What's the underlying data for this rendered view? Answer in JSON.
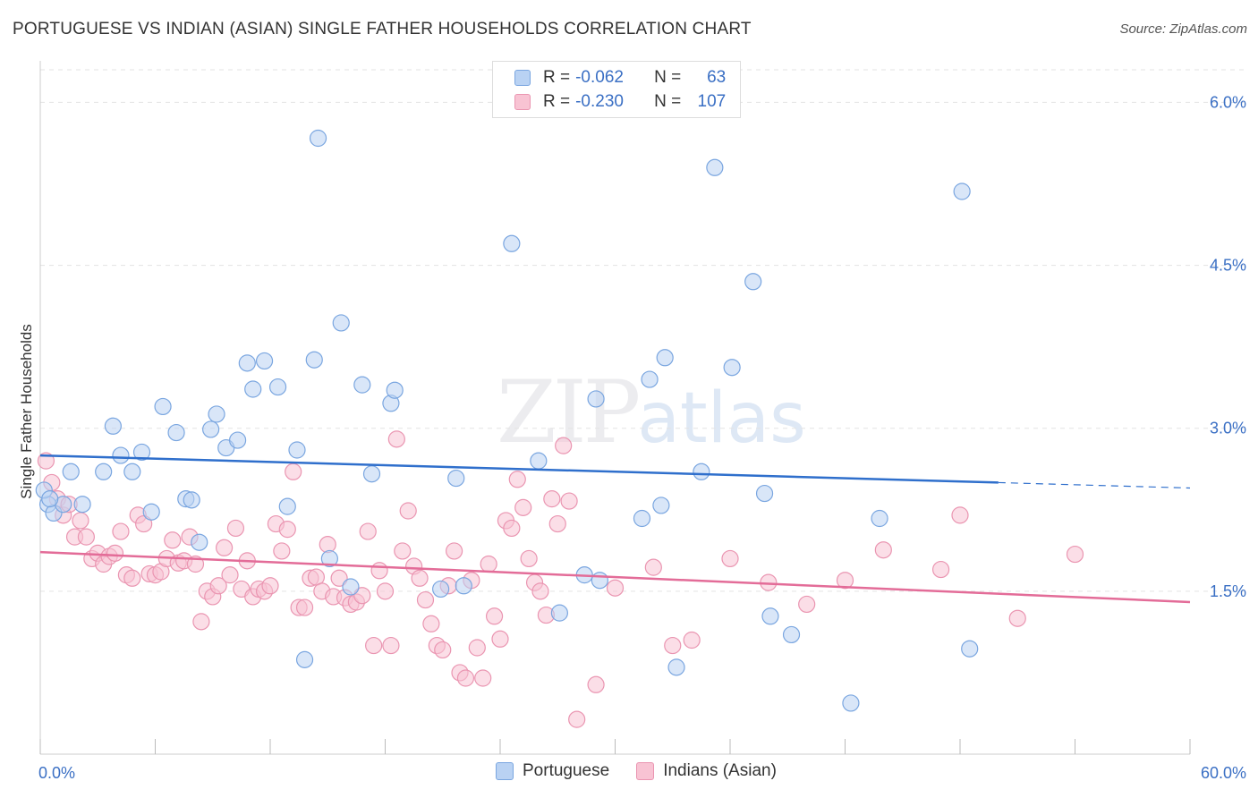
{
  "title": "PORTUGUESE VS INDIAN (ASIAN) SINGLE FATHER HOUSEHOLDS CORRELATION CHART",
  "source": "Source: ZipAtlas.com",
  "watermark": {
    "zip": "ZIP",
    "atlas": "atlas"
  },
  "colors": {
    "portuguese_fill": "#b9d2f3",
    "portuguese_stroke": "#7aa6e0",
    "portuguese_line": "#2f6fcc",
    "indian_fill": "#f8c3d3",
    "indian_stroke": "#ea95b1",
    "indian_line": "#e36c98",
    "tick_label": "#3a6fc4",
    "grid": "#e3e3e3"
  },
  "legend": {
    "rows": [
      {
        "r_label": "R =",
        "r_value": "-0.062",
        "n_label": "N =",
        "n_value": "63"
      },
      {
        "r_label": "R =",
        "r_value": "-0.230",
        "n_label": "N =",
        "n_value": "107"
      }
    ]
  },
  "bottom_legend": [
    "Portuguese",
    "Indians (Asian)"
  ],
  "chart_data": {
    "type": "scatter",
    "title": "PORTUGUESE VS INDIAN (ASIAN) SINGLE FATHER HOUSEHOLDS CORRELATION CHART",
    "xlabel": "",
    "ylabel": "Single Father Households",
    "xlim": [
      0,
      60
    ],
    "ylim": [
      0,
      6.3
    ],
    "x_tick_labels": [
      "0.0%",
      "60.0%"
    ],
    "y_ticks": [
      {
        "value": 1.5,
        "label": "1.5%"
      },
      {
        "value": 3.0,
        "label": "3.0%"
      },
      {
        "value": 4.5,
        "label": "4.5%"
      },
      {
        "value": 6.0,
        "label": "6.0%"
      }
    ],
    "grid": "horizontal-dashed",
    "legend_position": "top-center",
    "series": [
      {
        "name": "Portuguese",
        "r": -0.062,
        "n": 63,
        "trend": {
          "x": [
            0,
            50,
            60
          ],
          "y": [
            2.75,
            2.5,
            2.45
          ],
          "solid_until": 50
        },
        "points": [
          [
            0.4,
            2.3
          ],
          [
            0.7,
            2.22
          ],
          [
            1.2,
            2.3
          ],
          [
            1.6,
            2.6
          ],
          [
            2.2,
            2.3
          ],
          [
            3.3,
            2.6
          ],
          [
            3.8,
            3.02
          ],
          [
            4.2,
            2.75
          ],
          [
            4.8,
            2.6
          ],
          [
            5.3,
            2.78
          ],
          [
            5.8,
            2.23
          ],
          [
            6.4,
            3.2
          ],
          [
            7.1,
            2.96
          ],
          [
            7.6,
            2.35
          ],
          [
            7.9,
            2.34
          ],
          [
            8.3,
            1.95
          ],
          [
            8.9,
            2.99
          ],
          [
            9.2,
            3.13
          ],
          [
            9.7,
            2.82
          ],
          [
            10.3,
            2.89
          ],
          [
            10.8,
            3.6
          ],
          [
            11.1,
            3.36
          ],
          [
            11.7,
            3.62
          ],
          [
            12.4,
            3.38
          ],
          [
            12.9,
            2.28
          ],
          [
            13.4,
            2.8
          ],
          [
            13.8,
            0.87
          ],
          [
            14.3,
            3.63
          ],
          [
            14.5,
            5.67
          ],
          [
            15.1,
            1.8
          ],
          [
            15.7,
            3.97
          ],
          [
            16.2,
            1.54
          ],
          [
            16.8,
            3.4
          ],
          [
            17.3,
            2.58
          ],
          [
            18.3,
            3.23
          ],
          [
            18.5,
            3.35
          ],
          [
            20.9,
            1.52
          ],
          [
            21.7,
            2.54
          ],
          [
            22.1,
            1.55
          ],
          [
            24.6,
            4.7
          ],
          [
            26.0,
            2.7
          ],
          [
            27.1,
            1.3
          ],
          [
            28.4,
            1.65
          ],
          [
            29.0,
            3.27
          ],
          [
            29.2,
            1.6
          ],
          [
            31.4,
            2.17
          ],
          [
            31.8,
            3.45
          ],
          [
            32.4,
            2.29
          ],
          [
            32.6,
            3.65
          ],
          [
            33.2,
            0.8
          ],
          [
            34.5,
            2.6
          ],
          [
            35.2,
            5.4
          ],
          [
            36.1,
            3.56
          ],
          [
            37.2,
            4.35
          ],
          [
            37.8,
            2.4
          ],
          [
            38.1,
            1.27
          ],
          [
            39.2,
            1.1
          ],
          [
            42.3,
            0.47
          ],
          [
            43.8,
            2.17
          ],
          [
            48.1,
            5.18
          ],
          [
            48.5,
            0.97
          ],
          [
            0.2,
            2.43
          ],
          [
            0.5,
            2.35
          ]
        ]
      },
      {
        "name": "Indians (Asian)",
        "r": -0.23,
        "n": 107,
        "trend": {
          "x": [
            0,
            60
          ],
          "y": [
            1.86,
            1.4
          ]
        },
        "points": [
          [
            0.3,
            2.7
          ],
          [
            0.6,
            2.5
          ],
          [
            0.9,
            2.35
          ],
          [
            1.2,
            2.2
          ],
          [
            1.5,
            2.3
          ],
          [
            1.8,
            2.0
          ],
          [
            2.1,
            2.15
          ],
          [
            2.4,
            2.0
          ],
          [
            2.7,
            1.8
          ],
          [
            3.0,
            1.85
          ],
          [
            3.3,
            1.75
          ],
          [
            3.6,
            1.82
          ],
          [
            3.9,
            1.85
          ],
          [
            4.2,
            2.05
          ],
          [
            4.5,
            1.65
          ],
          [
            4.8,
            1.62
          ],
          [
            5.1,
            2.2
          ],
          [
            5.4,
            2.12
          ],
          [
            5.7,
            1.66
          ],
          [
            6.0,
            1.65
          ],
          [
            6.3,
            1.68
          ],
          [
            6.6,
            1.8
          ],
          [
            6.9,
            1.97
          ],
          [
            7.2,
            1.76
          ],
          [
            7.5,
            1.78
          ],
          [
            7.8,
            2.0
          ],
          [
            8.1,
            1.75
          ],
          [
            8.4,
            1.22
          ],
          [
            8.7,
            1.5
          ],
          [
            9.0,
            1.45
          ],
          [
            9.3,
            1.55
          ],
          [
            9.6,
            1.9
          ],
          [
            9.9,
            1.65
          ],
          [
            10.2,
            2.08
          ],
          [
            10.5,
            1.52
          ],
          [
            10.8,
            1.78
          ],
          [
            11.1,
            1.45
          ],
          [
            11.4,
            1.52
          ],
          [
            11.7,
            1.5
          ],
          [
            12.0,
            1.55
          ],
          [
            12.3,
            2.12
          ],
          [
            12.6,
            1.87
          ],
          [
            12.9,
            2.07
          ],
          [
            13.2,
            2.6
          ],
          [
            13.5,
            1.35
          ],
          [
            13.8,
            1.35
          ],
          [
            14.1,
            1.62
          ],
          [
            14.4,
            1.63
          ],
          [
            14.7,
            1.5
          ],
          [
            15.0,
            1.93
          ],
          [
            15.3,
            1.45
          ],
          [
            15.6,
            1.62
          ],
          [
            15.9,
            1.44
          ],
          [
            16.2,
            1.38
          ],
          [
            16.5,
            1.4
          ],
          [
            16.8,
            1.46
          ],
          [
            17.1,
            2.05
          ],
          [
            17.4,
            1.0
          ],
          [
            17.7,
            1.69
          ],
          [
            18.0,
            1.5
          ],
          [
            18.3,
            1.0
          ],
          [
            18.6,
            2.9
          ],
          [
            18.9,
            1.87
          ],
          [
            19.2,
            2.24
          ],
          [
            19.5,
            1.73
          ],
          [
            19.8,
            1.62
          ],
          [
            20.1,
            1.42
          ],
          [
            20.4,
            1.2
          ],
          [
            20.7,
            1.0
          ],
          [
            21.0,
            0.96
          ],
          [
            21.3,
            1.55
          ],
          [
            21.6,
            1.87
          ],
          [
            21.9,
            0.75
          ],
          [
            22.2,
            0.7
          ],
          [
            22.5,
            1.6
          ],
          [
            22.8,
            0.98
          ],
          [
            23.1,
            0.7
          ],
          [
            23.4,
            1.75
          ],
          [
            23.7,
            1.27
          ],
          [
            24.0,
            1.06
          ],
          [
            24.3,
            2.15
          ],
          [
            24.6,
            2.08
          ],
          [
            24.9,
            2.53
          ],
          [
            25.2,
            2.27
          ],
          [
            25.5,
            1.8
          ],
          [
            25.8,
            1.58
          ],
          [
            26.1,
            1.5
          ],
          [
            26.4,
            1.28
          ],
          [
            26.7,
            2.35
          ],
          [
            27.0,
            2.12
          ],
          [
            27.3,
            2.84
          ],
          [
            27.6,
            2.33
          ],
          [
            28.0,
            0.32
          ],
          [
            29.0,
            0.64
          ],
          [
            30.0,
            1.53
          ],
          [
            32.0,
            1.72
          ],
          [
            33.0,
            1.0
          ],
          [
            34.0,
            1.05
          ],
          [
            36.0,
            1.8
          ],
          [
            38.0,
            1.58
          ],
          [
            40.0,
            1.38
          ],
          [
            42.0,
            1.6
          ],
          [
            44.0,
            1.88
          ],
          [
            47.0,
            1.7
          ],
          [
            48.0,
            2.2
          ],
          [
            51.0,
            1.25
          ],
          [
            54.0,
            1.84
          ]
        ]
      }
    ]
  }
}
